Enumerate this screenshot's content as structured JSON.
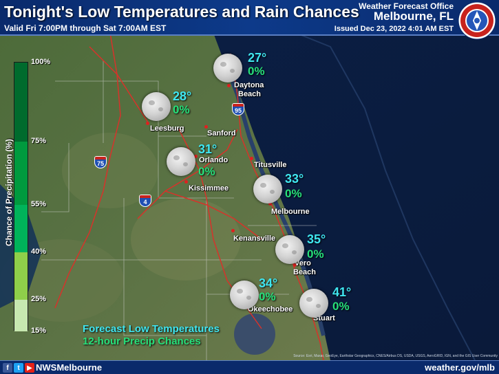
{
  "header": {
    "title": "Tonight's Low Temperatures and Rain Chances",
    "valid": "Valid Fri 7:00PM through Sat 7:00AM EST",
    "office_line1": "Weather Forecast Office",
    "office_line2": "Melbourne, FL",
    "issued": "Issued Dec 23, 2022 4:01 AM EST",
    "logo_text": "NATIONAL WEATHER SERVICE"
  },
  "legend": {
    "axis_label": "Chance of Precipitation (%)",
    "ticks": [
      "100%",
      "75%",
      "55%",
      "40%",
      "25%",
      "15%"
    ],
    "colors": [
      "#006b2d",
      "#009a3e",
      "#00b35a",
      "#8fcf4a",
      "#c7e8b0"
    ]
  },
  "cities": [
    {
      "name": "Daytona Beach",
      "label_line1": "Daytona",
      "label_line2": "Beach"
    },
    {
      "name": "Leesburg",
      "label_line1": "Leesburg",
      "label_line2": ""
    },
    {
      "name": "Sanford",
      "label_line1": "Sanford",
      "label_line2": ""
    },
    {
      "name": "Orlando",
      "label_line1": "Orlando",
      "label_line2": ""
    },
    {
      "name": "Titusville",
      "label_line1": "Titusville",
      "label_line2": ""
    },
    {
      "name": "Kissimmee",
      "label_line1": "Kissimmee",
      "label_line2": ""
    },
    {
      "name": "Melbourne",
      "label_line1": "Melbourne",
      "label_line2": ""
    },
    {
      "name": "Kenansville",
      "label_line1": "Kenansville",
      "label_line2": ""
    },
    {
      "name": "Vero Beach",
      "label_line1": "Vero",
      "label_line2": "Beach"
    },
    {
      "name": "Okeechobee",
      "label_line1": "Okeechobee",
      "label_line2": ""
    },
    {
      "name": "Stuart",
      "label_line1": "Stuart",
      "label_line2": ""
    }
  ],
  "forecasts": [
    {
      "location": "Daytona Beach",
      "low": "27°",
      "pop": "0%"
    },
    {
      "location": "Leesburg",
      "low": "28°",
      "pop": "0%"
    },
    {
      "location": "Orlando",
      "low": "31°",
      "pop": "0%"
    },
    {
      "location": "Melbourne",
      "low": "33°",
      "pop": "0%"
    },
    {
      "location": "Vero Beach",
      "low": "35°",
      "pop": "0%"
    },
    {
      "location": "Okeechobee",
      "low": "34°",
      "pop": "0%"
    },
    {
      "location": "Stuart",
      "low": "41°",
      "pop": "0%"
    }
  ],
  "interstates": [
    "95",
    "75",
    "4"
  ],
  "notes": {
    "line1": "Forecast Low Temperatures",
    "line2": "12-hour Precip Chances"
  },
  "footer": {
    "handle": "NWSMelbourne",
    "site": "weather.gov/mlb",
    "social_icons": [
      "facebook-icon",
      "twitter-icon",
      "youtube-icon"
    ]
  },
  "credit": "Source: Esri, Maxar, GeoEye, Earthstar Geographics, CNES/Airbus DS, USDA, USGS, AeroGRID, IGN, and the GIS User Community",
  "colors": {
    "temp_text": "#3fe6f0",
    "pop_text": "#27e07a",
    "header_bg": "#0d3a8a",
    "city_dot": "#e02020"
  }
}
